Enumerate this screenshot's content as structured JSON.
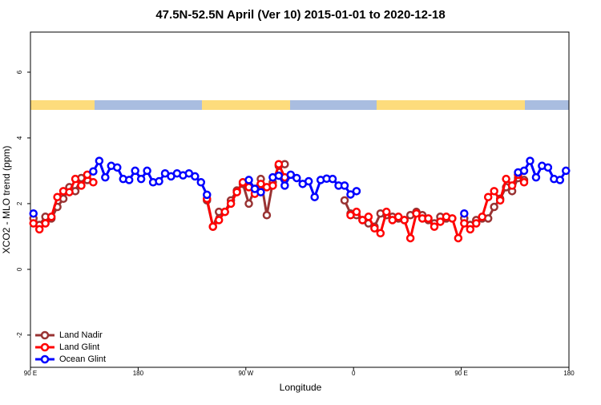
{
  "chart_data": {
    "type": "line",
    "title": "47.5N-52.5N April (Ver 10)   2015-01-01 to 2020-12-18",
    "x_label": "Longitude",
    "y_label": "XCO2 - MLO trend (ppm)",
    "x": [
      92.5,
      97.5,
      102.5,
      107.5,
      112.5,
      117.5,
      122.5,
      127.5,
      132.5,
      137.5,
      142.5,
      147.5,
      152.5,
      157.5,
      162.5,
      167.5,
      172.5,
      177.5,
      182.5,
      187.5,
      192.5,
      197.5,
      202.5,
      207.5,
      212.5,
      217.5,
      222.5,
      227.5,
      232.5,
      237.5,
      242.5,
      247.5,
      252.5,
      257.5,
      262.5,
      267.5,
      272.5,
      277.5,
      282.5,
      287.5,
      292.5,
      297.5,
      302.5,
      307.5,
      312.5,
      317.5,
      322.5,
      327.5,
      332.5,
      337.5,
      342.5,
      347.5,
      352.5,
      357.5,
      362.5,
      367.5,
      372.5,
      377.5,
      382.5,
      387.5,
      392.5,
      397.5,
      402.5,
      407.5,
      412.5,
      417.5,
      422.5,
      427.5,
      432.5,
      437.5,
      442.5,
      447.5,
      452.5,
      457.5,
      462.5,
      467.5,
      472.5,
      477.5,
      482.5,
      487.5,
      492.5,
      497.5,
      502.5,
      507.5,
      512.5,
      517.5,
      522.5,
      527.5,
      532.5,
      537.5
    ],
    "series": [
      {
        "name": "Land Nadir",
        "color": "#993333",
        "values": [
          1.55,
          1.35,
          1.6,
          1.55,
          1.9,
          2.15,
          2.5,
          2.38,
          2.78,
          2.72,
          null,
          null,
          null,
          null,
          null,
          null,
          null,
          null,
          null,
          null,
          null,
          null,
          null,
          null,
          null,
          null,
          null,
          null,
          null,
          2.1,
          1.3,
          1.75,
          1.75,
          2.1,
          2.4,
          2.6,
          2.0,
          2.45,
          2.75,
          1.65,
          2.65,
          3.15,
          3.2,
          null,
          null,
          null,
          null,
          null,
          null,
          null,
          null,
          null,
          2.1,
          1.7,
          1.65,
          1.5,
          1.4,
          1.3,
          1.7,
          1.65,
          1.6,
          1.55,
          1.5,
          1.65,
          1.75,
          1.65,
          1.5,
          1.4,
          1.6,
          1.55,
          null,
          null,
          1.55,
          1.35,
          1.5,
          1.55,
          1.55,
          1.9,
          2.15,
          2.5,
          2.38,
          2.78,
          2.72,
          null,
          null,
          null,
          null,
          null,
          null,
          null
        ]
      },
      {
        "name": "Land Glint",
        "color": "#ff0000",
        "values": [
          1.4,
          1.22,
          1.4,
          1.6,
          2.2,
          2.38,
          2.35,
          2.75,
          2.55,
          2.88,
          2.65,
          null,
          null,
          null,
          null,
          null,
          null,
          null,
          null,
          null,
          null,
          null,
          null,
          null,
          null,
          null,
          null,
          null,
          null,
          2.15,
          1.3,
          1.5,
          1.75,
          2.0,
          2.35,
          2.65,
          2.5,
          2.3,
          2.6,
          2.5,
          2.55,
          3.2,
          2.8,
          null,
          null,
          null,
          null,
          null,
          null,
          null,
          null,
          null,
          null,
          1.65,
          1.75,
          1.5,
          1.6,
          1.25,
          1.1,
          1.75,
          1.5,
          1.6,
          1.5,
          0.95,
          1.7,
          1.55,
          1.55,
          1.3,
          1.45,
          1.6,
          1.55,
          0.95,
          1.4,
          1.22,
          1.4,
          1.6,
          2.2,
          2.38,
          2.1,
          2.75,
          2.55,
          2.88,
          2.65,
          null,
          null,
          null,
          null,
          null,
          null,
          null
        ]
      },
      {
        "name": "Ocean Glint",
        "color": "#0000ff",
        "values": [
          1.7,
          null,
          null,
          null,
          null,
          null,
          null,
          null,
          null,
          null,
          2.98,
          3.3,
          2.8,
          3.15,
          3.1,
          2.75,
          2.72,
          3.0,
          2.75,
          3.0,
          2.65,
          2.68,
          2.92,
          2.83,
          2.92,
          2.86,
          2.92,
          2.83,
          2.65,
          2.27,
          null,
          null,
          null,
          null,
          null,
          null,
          2.72,
          2.45,
          2.35,
          null,
          2.8,
          2.85,
          2.55,
          2.88,
          2.78,
          2.6,
          2.68,
          2.2,
          2.72,
          2.76,
          2.75,
          2.55,
          2.55,
          2.28,
          2.38,
          null,
          null,
          null,
          null,
          null,
          null,
          null,
          null,
          null,
          null,
          null,
          null,
          null,
          null,
          null,
          null,
          null,
          1.7,
          null,
          null,
          null,
          null,
          null,
          null,
          null,
          null,
          2.95,
          3.0,
          3.3,
          2.8,
          3.15,
          3.1,
          2.75,
          2.72,
          3.0
        ]
      }
    ],
    "xlim": [
      90,
      540
    ],
    "xticks": [
      {
        "value": 90,
        "label": "90 E"
      },
      180,
      {
        "value": 270,
        "label": "90 W"
      },
      {
        "value": 360,
        "label": "0"
      },
      {
        "value": 450,
        "label": "90 E"
      },
      {
        "value": 540,
        "label": "180"
      }
    ],
    "ylim": [
      -2.98,
      7.22
    ],
    "yticks": [
      -2,
      0,
      2,
      4,
      6
    ],
    "legend": "bottom-left"
  }
}
